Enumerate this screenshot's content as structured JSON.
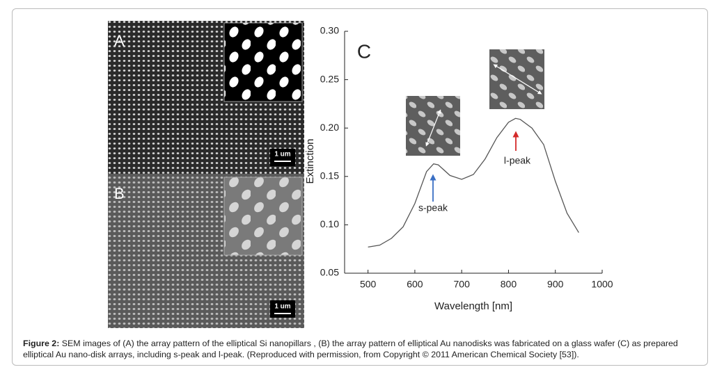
{
  "figure": {
    "panels": [
      {
        "label": "A",
        "scale_bar": "1 um"
      },
      {
        "label": "B",
        "scale_bar": "1 um"
      }
    ],
    "caption": {
      "label": "Figure 2:",
      "text": "SEM images of (A) the array pattern of the elliptical Si nanopillars , (B) the array pattern of elliptical Au nanodisks was fabricated on a glass wafer (C) as prepared elliptical Au nano-disk arrays, including s-peak and l-peak. (Reproduced with permission, from Copyright © 2011 American Chemical Society [53])."
    }
  },
  "chart_data": {
    "type": "line",
    "x_label": "Wavelength [nm]",
    "y_label": "Extinction",
    "annotations": [
      "C",
      "s-peak",
      "l-peak"
    ],
    "x": [
      500,
      525,
      550,
      575,
      600,
      625,
      640,
      650,
      675,
      700,
      725,
      750,
      775,
      800,
      815,
      825,
      850,
      875,
      900,
      925,
      950
    ],
    "values": [
      0.077,
      0.079,
      0.086,
      0.098,
      0.122,
      0.155,
      0.163,
      0.162,
      0.151,
      0.147,
      0.152,
      0.168,
      0.19,
      0.206,
      0.21,
      0.209,
      0.2,
      0.183,
      0.145,
      0.112,
      0.092
    ],
    "color": "#555555",
    "xlim": [
      450,
      1000
    ],
    "xticks": [
      500,
      600,
      700,
      800,
      900,
      1000
    ],
    "ylim": [
      0.05,
      0.3
    ],
    "yticks": [
      0.05,
      {
        "value": 0.1,
        "label": "0.10"
      },
      0.15,
      {
        "value": 0.2,
        "label": "0.20"
      },
      0.25,
      {
        "value": 0.3,
        "label": "0.30"
      }
    ]
  }
}
